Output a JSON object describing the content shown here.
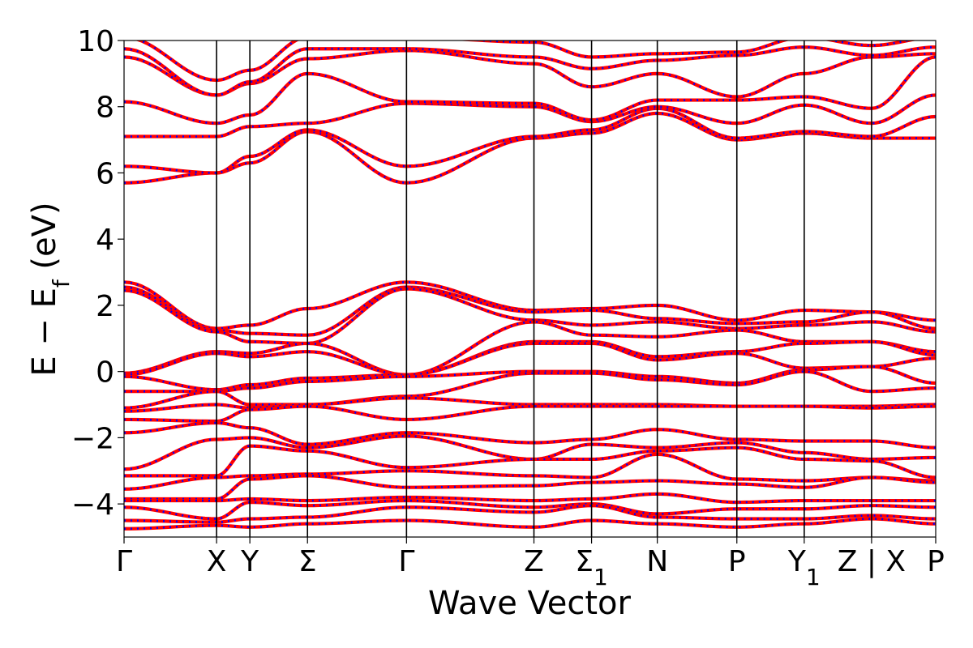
{
  "chart_data": {
    "type": "line",
    "title": "",
    "xlabel": "Wave Vector",
    "ylabel": "E − E_f (eV)",
    "ylabel_parts": [
      "E − E",
      "f",
      " (eV)"
    ],
    "ylim": [
      -5,
      10
    ],
    "yticks": [
      {
        "value": 10,
        "label": "10"
      },
      {
        "value": 8,
        "label": "8"
      },
      {
        "value": 6,
        "label": "6"
      },
      {
        "value": 4,
        "label": "4"
      },
      {
        "value": 2,
        "label": "2"
      },
      {
        "value": 0,
        "label": "0"
      },
      {
        "value": -2,
        "label": "−2"
      },
      {
        "value": -4,
        "label": "−4"
      }
    ],
    "xlim": [
      0,
      10
    ],
    "kpoints": [
      {
        "pos": 0.0,
        "label": "Γ",
        "sub": ""
      },
      {
        "pos": 1.14,
        "label": "X",
        "sub": ""
      },
      {
        "pos": 1.55,
        "label": "Y",
        "sub": ""
      },
      {
        "pos": 2.26,
        "label": "Σ",
        "sub": ""
      },
      {
        "pos": 3.48,
        "label": "Γ",
        "sub": ""
      },
      {
        "pos": 5.05,
        "label": "Z",
        "sub": ""
      },
      {
        "pos": 5.76,
        "label": "Σ",
        "sub": "1"
      },
      {
        "pos": 6.57,
        "label": "N",
        "sub": ""
      },
      {
        "pos": 7.55,
        "label": "P",
        "sub": ""
      },
      {
        "pos": 8.38,
        "label": "Y",
        "sub": "1"
      },
      {
        "pos": 9.21,
        "label": "Z | X",
        "sub": ""
      },
      {
        "pos": 10.0,
        "label": "P",
        "sub": ""
      }
    ],
    "grid": false,
    "legend": "none",
    "colors": {
      "series_a": "#ff0000",
      "series_b": "#0000ff"
    },
    "segments": [
      {
        "from": 0.0,
        "to": 1.14
      },
      {
        "from": 1.14,
        "to": 1.55
      },
      {
        "from": 1.55,
        "to": 2.26
      },
      {
        "from": 2.26,
        "to": 3.48
      },
      {
        "from": 3.48,
        "to": 5.05
      },
      {
        "from": 5.05,
        "to": 5.76
      },
      {
        "from": 5.76,
        "to": 6.57
      },
      {
        "from": 6.57,
        "to": 7.55
      },
      {
        "from": 7.55,
        "to": 8.38
      },
      {
        "from": 8.38,
        "to": 9.21
      },
      {
        "from": 9.21,
        "to": 10.0
      }
    ],
    "bands": [
      [
        2.7,
        1.3,
        1.4,
        1.9,
        2.7,
        1.85,
        1.9,
        2.0,
        1.55,
        1.85,
        1.8,
        1.55
      ],
      [
        2.55,
        1.25,
        1.15,
        1.1,
        2.55,
        1.8,
        1.85,
        1.6,
        1.45,
        1.5,
        1.8,
        1.3
      ],
      [
        2.45,
        1.2,
        0.9,
        0.85,
        2.5,
        1.55,
        1.4,
        1.5,
        1.3,
        1.4,
        1.5,
        1.2
      ],
      [
        -0.05,
        0.6,
        0.55,
        0.85,
        -0.1,
        1.5,
        1.1,
        1.05,
        1.25,
        0.9,
        0.9,
        0.6
      ],
      [
        -0.1,
        0.55,
        0.45,
        0.6,
        -0.1,
        0.9,
        0.9,
        0.45,
        0.6,
        0.85,
        0.9,
        0.5
      ],
      [
        -0.15,
        -0.55,
        -0.4,
        -0.2,
        -0.1,
        0.85,
        0.85,
        0.35,
        0.55,
        0.1,
        0.15,
        0.4
      ],
      [
        -0.6,
        -0.6,
        -0.5,
        -0.3,
        -0.15,
        0.0,
        0.0,
        -0.15,
        -0.35,
        0.05,
        0.15,
        -0.35
      ],
      [
        -1.1,
        -0.6,
        -1.0,
        -1.0,
        -0.75,
        -0.05,
        -0.05,
        -0.25,
        -0.4,
        0.0,
        -0.6,
        -0.5
      ],
      [
        -1.2,
        -1.0,
        -1.1,
        -1.0,
        -0.8,
        -1.0,
        -1.0,
        -1.0,
        -1.05,
        -1.05,
        -1.05,
        -1.0
      ],
      [
        -1.45,
        -1.5,
        -1.15,
        -1.05,
        -1.45,
        -1.05,
        -1.05,
        -1.05,
        -1.05,
        -1.05,
        -1.1,
        -1.05
      ],
      [
        -1.85,
        -1.55,
        -1.7,
        -2.2,
        -1.85,
        -2.15,
        -2.05,
        -1.75,
        -2.05,
        -2.1,
        -2.1,
        -2.3
      ],
      [
        -2.95,
        -2.05,
        -2.0,
        -2.3,
        -1.95,
        -2.65,
        -2.2,
        -2.3,
        -2.15,
        -2.45,
        -2.65,
        -2.6
      ],
      [
        -3.15,
        -3.15,
        -2.25,
        -2.4,
        -2.9,
        -2.65,
        -2.65,
        -2.4,
        -2.3,
        -2.65,
        -2.7,
        -3.2
      ],
      [
        -3.55,
        -3.2,
        -3.15,
        -3.1,
        -3.0,
        -3.15,
        -3.2,
        -2.5,
        -3.25,
        -3.3,
        -3.2,
        -3.3
      ],
      [
        -3.85,
        -3.85,
        -3.25,
        -3.15,
        -3.5,
        -3.45,
        -3.35,
        -3.3,
        -3.4,
        -3.5,
        -3.2,
        -3.35
      ],
      [
        -3.9,
        -3.9,
        -3.85,
        -3.9,
        -3.8,
        -3.9,
        -3.85,
        -3.7,
        -3.95,
        -3.9,
        -3.9,
        -3.9
      ],
      [
        -4.1,
        -4.45,
        -3.95,
        -4.05,
        -3.9,
        -4.1,
        -4.0,
        -4.3,
        -4.15,
        -4.15,
        -4.05,
        -4.1
      ],
      [
        -4.5,
        -4.55,
        -4.45,
        -4.4,
        -4.1,
        -4.25,
        -4.05,
        -4.4,
        -4.45,
        -4.45,
        -4.35,
        -4.45
      ],
      [
        -4.75,
        -4.65,
        -4.7,
        -4.6,
        -4.5,
        -4.7,
        -4.5,
        -4.6,
        -4.7,
        -4.6,
        -4.45,
        -4.6
      ],
      [
        5.7,
        6.0,
        6.3,
        7.25,
        5.7,
        7.05,
        7.2,
        7.8,
        7.0,
        7.2,
        7.05,
        7.05
      ],
      [
        6.2,
        6.0,
        6.5,
        7.3,
        6.2,
        7.1,
        7.3,
        7.95,
        7.05,
        7.25,
        7.1,
        7.7
      ],
      [
        7.1,
        7.1,
        7.4,
        7.5,
        8.1,
        8.0,
        7.55,
        8.0,
        7.5,
        8.05,
        7.5,
        8.35
      ],
      [
        8.15,
        7.5,
        7.75,
        9.0,
        8.15,
        8.1,
        7.6,
        8.2,
        8.2,
        8.3,
        7.95,
        9.5
      ],
      [
        9.5,
        8.35,
        8.7,
        9.45,
        9.7,
        9.3,
        8.6,
        9.0,
        8.3,
        9.0,
        9.5,
        9.6
      ],
      [
        9.75,
        8.35,
        8.75,
        9.75,
        9.75,
        9.5,
        9.15,
        9.4,
        9.55,
        9.8,
        9.55,
        9.8
      ],
      [
        10.1,
        8.8,
        9.1,
        10.1,
        10.1,
        9.95,
        9.5,
        9.6,
        9.65,
        10.1,
        9.85,
        10.1
      ]
    ]
  }
}
